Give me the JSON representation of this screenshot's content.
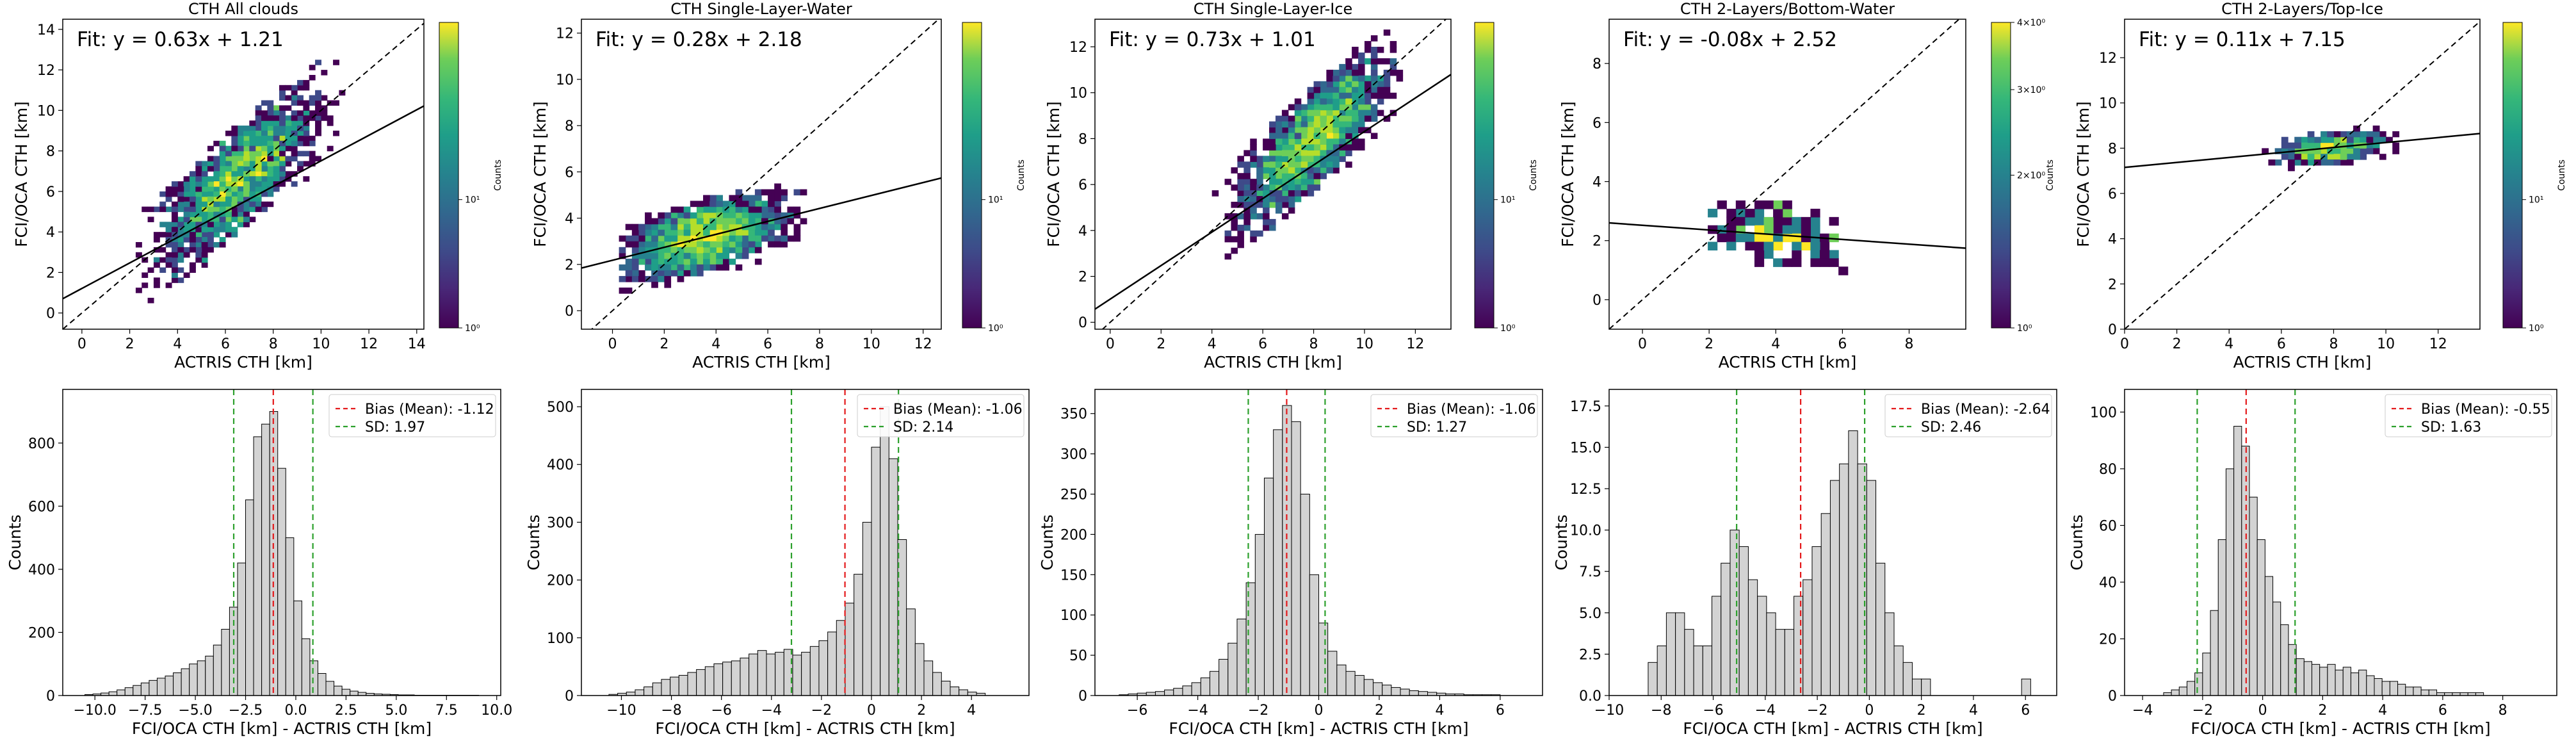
{
  "chart_data": [
    {
      "type": "heatmap",
      "title": "CTH All clouds",
      "xlabel": "ACTRIS CTH [km]",
      "ylabel": "FCI/OCA CTH [km]",
      "xlim": [
        -0.8,
        14.3
      ],
      "ylim": [
        -0.8,
        14.5
      ],
      "xticks": [
        0,
        2,
        4,
        6,
        8,
        10,
        12,
        14
      ],
      "yticks": [
        0,
        2,
        4,
        6,
        8,
        10,
        12,
        14
      ],
      "fit_label": "Fit: y = 0.63x + 1.21",
      "fit": {
        "slope": 0.63,
        "intercept": 1.21
      },
      "identity_line": true,
      "density": {
        "cx": 6.5,
        "cy": 6.0,
        "spread_x": 2.8,
        "spread_y": 2.4,
        "x_min": 0.3,
        "x_max": 11.5
      },
      "colorbar": {
        "label": "Counts",
        "scale": "log",
        "ticks": [
          "10⁰",
          "10¹"
        ],
        "cmap": "viridis"
      }
    },
    {
      "type": "heatmap",
      "title": "CTH Single-Layer-Water",
      "xlabel": "ACTRIS CTH [km]",
      "ylabel": "FCI/OCA CTH [km]",
      "xlim": [
        -1.2,
        12.7
      ],
      "ylim": [
        -0.8,
        12.6
      ],
      "xticks": [
        0,
        2,
        4,
        6,
        8,
        10,
        12
      ],
      "yticks": [
        0,
        2,
        4,
        6,
        8,
        10,
        12
      ],
      "fit_label": "Fit: y = 0.28x + 2.18",
      "fit": {
        "slope": 0.28,
        "intercept": 2.18
      },
      "identity_line": true,
      "density": {
        "cx": 3.5,
        "cy": 3.3,
        "spread_x": 2.6,
        "spread_y": 1.4,
        "x_min": 0.3,
        "x_max": 11
      },
      "colorbar": {
        "label": "Counts",
        "scale": "log",
        "ticks": [
          "10⁰",
          "10¹"
        ],
        "cmap": "viridis"
      }
    },
    {
      "type": "heatmap",
      "title": "CTH Single-Layer-Ice",
      "xlabel": "ACTRIS CTH [km]",
      "ylabel": "FCI/OCA CTH [km]",
      "xlim": [
        -0.6,
        13.4
      ],
      "ylim": [
        -0.3,
        13.2
      ],
      "xticks": [
        0,
        2,
        4,
        6,
        8,
        10,
        12
      ],
      "yticks": [
        0,
        2,
        4,
        6,
        8,
        10,
        12
      ],
      "fit_label": "Fit: y = 0.73x + 1.01",
      "fit": {
        "slope": 0.73,
        "intercept": 1.01
      },
      "identity_line": true,
      "density": {
        "cx": 8.0,
        "cy": 6.8,
        "spread_x": 2.5,
        "spread_y": 2.0,
        "x_min": 1.0,
        "x_max": 11.5
      },
      "colorbar": {
        "label": "Counts",
        "scale": "log",
        "ticks": [
          "10⁰",
          "10¹"
        ],
        "cmap": "viridis"
      }
    },
    {
      "type": "heatmap",
      "title": "CTH 2-Layers/Bottom-Water",
      "xlabel": "ACTRIS CTH [km]",
      "ylabel": "FCI/OCA CTH [km]",
      "xlim": [
        -1.0,
        9.7
      ],
      "ylim": [
        -1.0,
        9.5
      ],
      "xticks": [
        0,
        2,
        4,
        6,
        8
      ],
      "yticks": [
        0,
        2,
        4,
        6,
        8
      ],
      "fit_label": "Fit: y = -0.08x + 2.52",
      "fit": {
        "slope": -0.08,
        "intercept": 2.52
      },
      "identity_line": true,
      "density": {
        "cx": 4.0,
        "cy": 2.2,
        "spread_x": 1.8,
        "spread_y": 1.0,
        "x_min": 1.0,
        "x_max": 8.5
      },
      "colorbar": {
        "label": "Counts",
        "scale": "log",
        "ticks": [
          "10⁰",
          "2×10⁰",
          "3×10⁰",
          "4×10⁰"
        ],
        "cmap": "viridis"
      }
    },
    {
      "type": "heatmap",
      "title": "CTH 2-Layers/Top-Ice",
      "xlabel": "ACTRIS CTH [km]",
      "ylabel": "FCI/OCA CTH [km]",
      "xlim": [
        0,
        13.6
      ],
      "ylim": [
        0,
        13.7
      ],
      "xticks": [
        0,
        2,
        4,
        6,
        8,
        10,
        12
      ],
      "yticks": [
        0,
        2,
        4,
        6,
        8,
        10,
        12
      ],
      "fit_label": "Fit: y = 0.11x + 7.15",
      "fit": {
        "slope": 0.11,
        "intercept": 7.15
      },
      "identity_line": true,
      "density": {
        "cx": 8.0,
        "cy": 8.0,
        "spread_x": 1.8,
        "spread_y": 0.6,
        "x_min": 2.0,
        "x_max": 11.0
      },
      "colorbar": {
        "label": "Counts",
        "scale": "log",
        "ticks": [
          "10⁰",
          "10¹"
        ],
        "cmap": "viridis"
      }
    },
    {
      "type": "bar",
      "title": "",
      "xlabel": "FCI/OCA CTH [km] - ACTRIS CTH [km]",
      "ylabel": "Counts",
      "xlim": [
        -11.6,
        10.2
      ],
      "ylim": [
        0,
        970
      ],
      "xticks": [
        -10.0,
        -7.5,
        -5.0,
        -2.5,
        0.0,
        2.5,
        5.0,
        7.5,
        10.0
      ],
      "xtick_labels": [
        "−10.0",
        "−7.5",
        "−5.0",
        "−2.5",
        "0.0",
        "2.5",
        "5.0",
        "7.5",
        "10.0"
      ],
      "yticks": [
        0,
        200,
        400,
        600,
        800
      ],
      "bin_start": -10.5,
      "bin_width": 0.4,
      "values": [
        3,
        5,
        8,
        12,
        18,
        25,
        32,
        40,
        48,
        55,
        62,
        72,
        85,
        100,
        110,
        125,
        160,
        210,
        280,
        420,
        620,
        820,
        860,
        900,
        720,
        500,
        300,
        180,
        110,
        70,
        45,
        30,
        20,
        14,
        10,
        7,
        5,
        4,
        3,
        2,
        2,
        1,
        1,
        1,
        1,
        1,
        1,
        1,
        1
      ],
      "bias": -1.12,
      "sd": 1.97,
      "legend": [
        "Bias (Mean): -1.12",
        "SD: 1.97"
      ]
    },
    {
      "type": "bar",
      "title": "",
      "xlabel": "FCI/OCA CTH [km] - ACTRIS CTH [km]",
      "ylabel": "Counts",
      "xlim": [
        -11.6,
        6.3
      ],
      "ylim": [
        0,
        530
      ],
      "xticks": [
        -10,
        -8,
        -6,
        -4,
        -2,
        0,
        2,
        4
      ],
      "xtick_labels": [
        "−10",
        "−8",
        "−6",
        "−4",
        "−2",
        "0",
        "2",
        "4"
      ],
      "yticks": [
        0,
        100,
        200,
        300,
        400,
        500
      ],
      "bin_start": -10.5,
      "bin_width": 0.35,
      "values": [
        2,
        4,
        6,
        10,
        15,
        22,
        28,
        32,
        35,
        40,
        45,
        50,
        55,
        58,
        60,
        65,
        72,
        78,
        72,
        75,
        80,
        70,
        75,
        85,
        95,
        110,
        130,
        160,
        210,
        300,
        430,
        500,
        410,
        270,
        150,
        90,
        60,
        40,
        25,
        15,
        10,
        6,
        4
      ],
      "bias": -1.06,
      "sd": 2.14,
      "legend": [
        "Bias (Mean): -1.06",
        "SD: 2.14"
      ]
    },
    {
      "type": "bar",
      "title": "",
      "xlabel": "FCI/OCA CTH [km] - ACTRIS CTH [km]",
      "ylabel": "Counts",
      "xlim": [
        -7.4,
        7.4
      ],
      "ylim": [
        0,
        380
      ],
      "xticks": [
        -6,
        -4,
        -2,
        0,
        2,
        4,
        6
      ],
      "xtick_labels": [
        "−6",
        "−4",
        "−2",
        "0",
        "2",
        "4",
        "6"
      ],
      "yticks": [
        0,
        50,
        100,
        150,
        200,
        250,
        300,
        350
      ],
      "bin_start": -6.6,
      "bin_width": 0.3,
      "values": [
        1,
        2,
        3,
        4,
        5,
        7,
        9,
        12,
        16,
        22,
        30,
        45,
        65,
        95,
        140,
        200,
        270,
        330,
        360,
        340,
        250,
        150,
        90,
        55,
        38,
        30,
        25,
        20,
        16,
        13,
        10,
        8,
        6,
        5,
        4,
        3,
        2,
        2,
        1,
        1,
        1,
        1
      ],
      "bias": -1.06,
      "sd": 1.27,
      "legend": [
        "Bias (Mean): -1.06",
        "SD: 1.27"
      ]
    },
    {
      "type": "bar",
      "title": "",
      "xlabel": "FCI/OCA CTH [km] - ACTRIS CTH [km]",
      "ylabel": "Counts",
      "xlim": [
        -10,
        7.2
      ],
      "ylim": [
        0,
        18.5
      ],
      "xticks": [
        -10,
        -8,
        -6,
        -4,
        -2,
        0,
        2,
        4,
        6
      ],
      "xtick_labels": [
        "−10",
        "−8",
        "−6",
        "−4",
        "−2",
        "0",
        "2",
        "4",
        "6"
      ],
      "yticks": [
        0,
        2.5,
        5,
        7.5,
        10,
        12.5,
        15,
        17.5
      ],
      "ytick_labels": [
        "0.0",
        "2.5",
        "5.0",
        "7.5",
        "10.0",
        "12.5",
        "15.0",
        "17.5"
      ],
      "bin_start": -8.5,
      "bin_width": 0.35,
      "values": [
        2,
        3,
        5,
        5,
        4,
        3,
        3,
        6,
        8,
        10,
        9,
        7,
        6,
        5,
        4,
        4,
        6,
        7,
        9,
        11,
        13,
        14,
        16,
        14,
        13,
        8,
        5,
        3,
        2,
        1,
        1,
        0,
        0,
        0,
        0,
        0,
        0,
        0,
        0,
        0,
        0,
        1
      ],
      "bias": -2.64,
      "sd": 2.46,
      "legend": [
        "Bias (Mean): -2.64",
        "SD: 2.46"
      ]
    },
    {
      "type": "bar",
      "title": "",
      "xlabel": "FCI/OCA CTH [km] - ACTRIS CTH [km]",
      "ylabel": "Counts",
      "xlim": [
        -4.6,
        9.8
      ],
      "ylim": [
        0,
        108
      ],
      "xticks": [
        -4,
        -2,
        0,
        2,
        4,
        6,
        8
      ],
      "xtick_labels": [
        "−4",
        "−2",
        "0",
        "2",
        "4",
        "6",
        "8"
      ],
      "yticks": [
        0,
        20,
        40,
        60,
        80,
        100
      ],
      "bin_start": -3.3,
      "bin_width": 0.26,
      "values": [
        1,
        2,
        3,
        5,
        8,
        15,
        30,
        55,
        80,
        95,
        88,
        70,
        55,
        42,
        33,
        25,
        18,
        13,
        12,
        11,
        10,
        11,
        9,
        10,
        8,
        9,
        7,
        6,
        5,
        5,
        4,
        3,
        3,
        2,
        2,
        1,
        1,
        1,
        1,
        1,
        1
      ],
      "bias": -0.55,
      "sd": 1.63,
      "legend": [
        "Bias (Mean): -0.55",
        "SD: 1.63"
      ]
    }
  ]
}
